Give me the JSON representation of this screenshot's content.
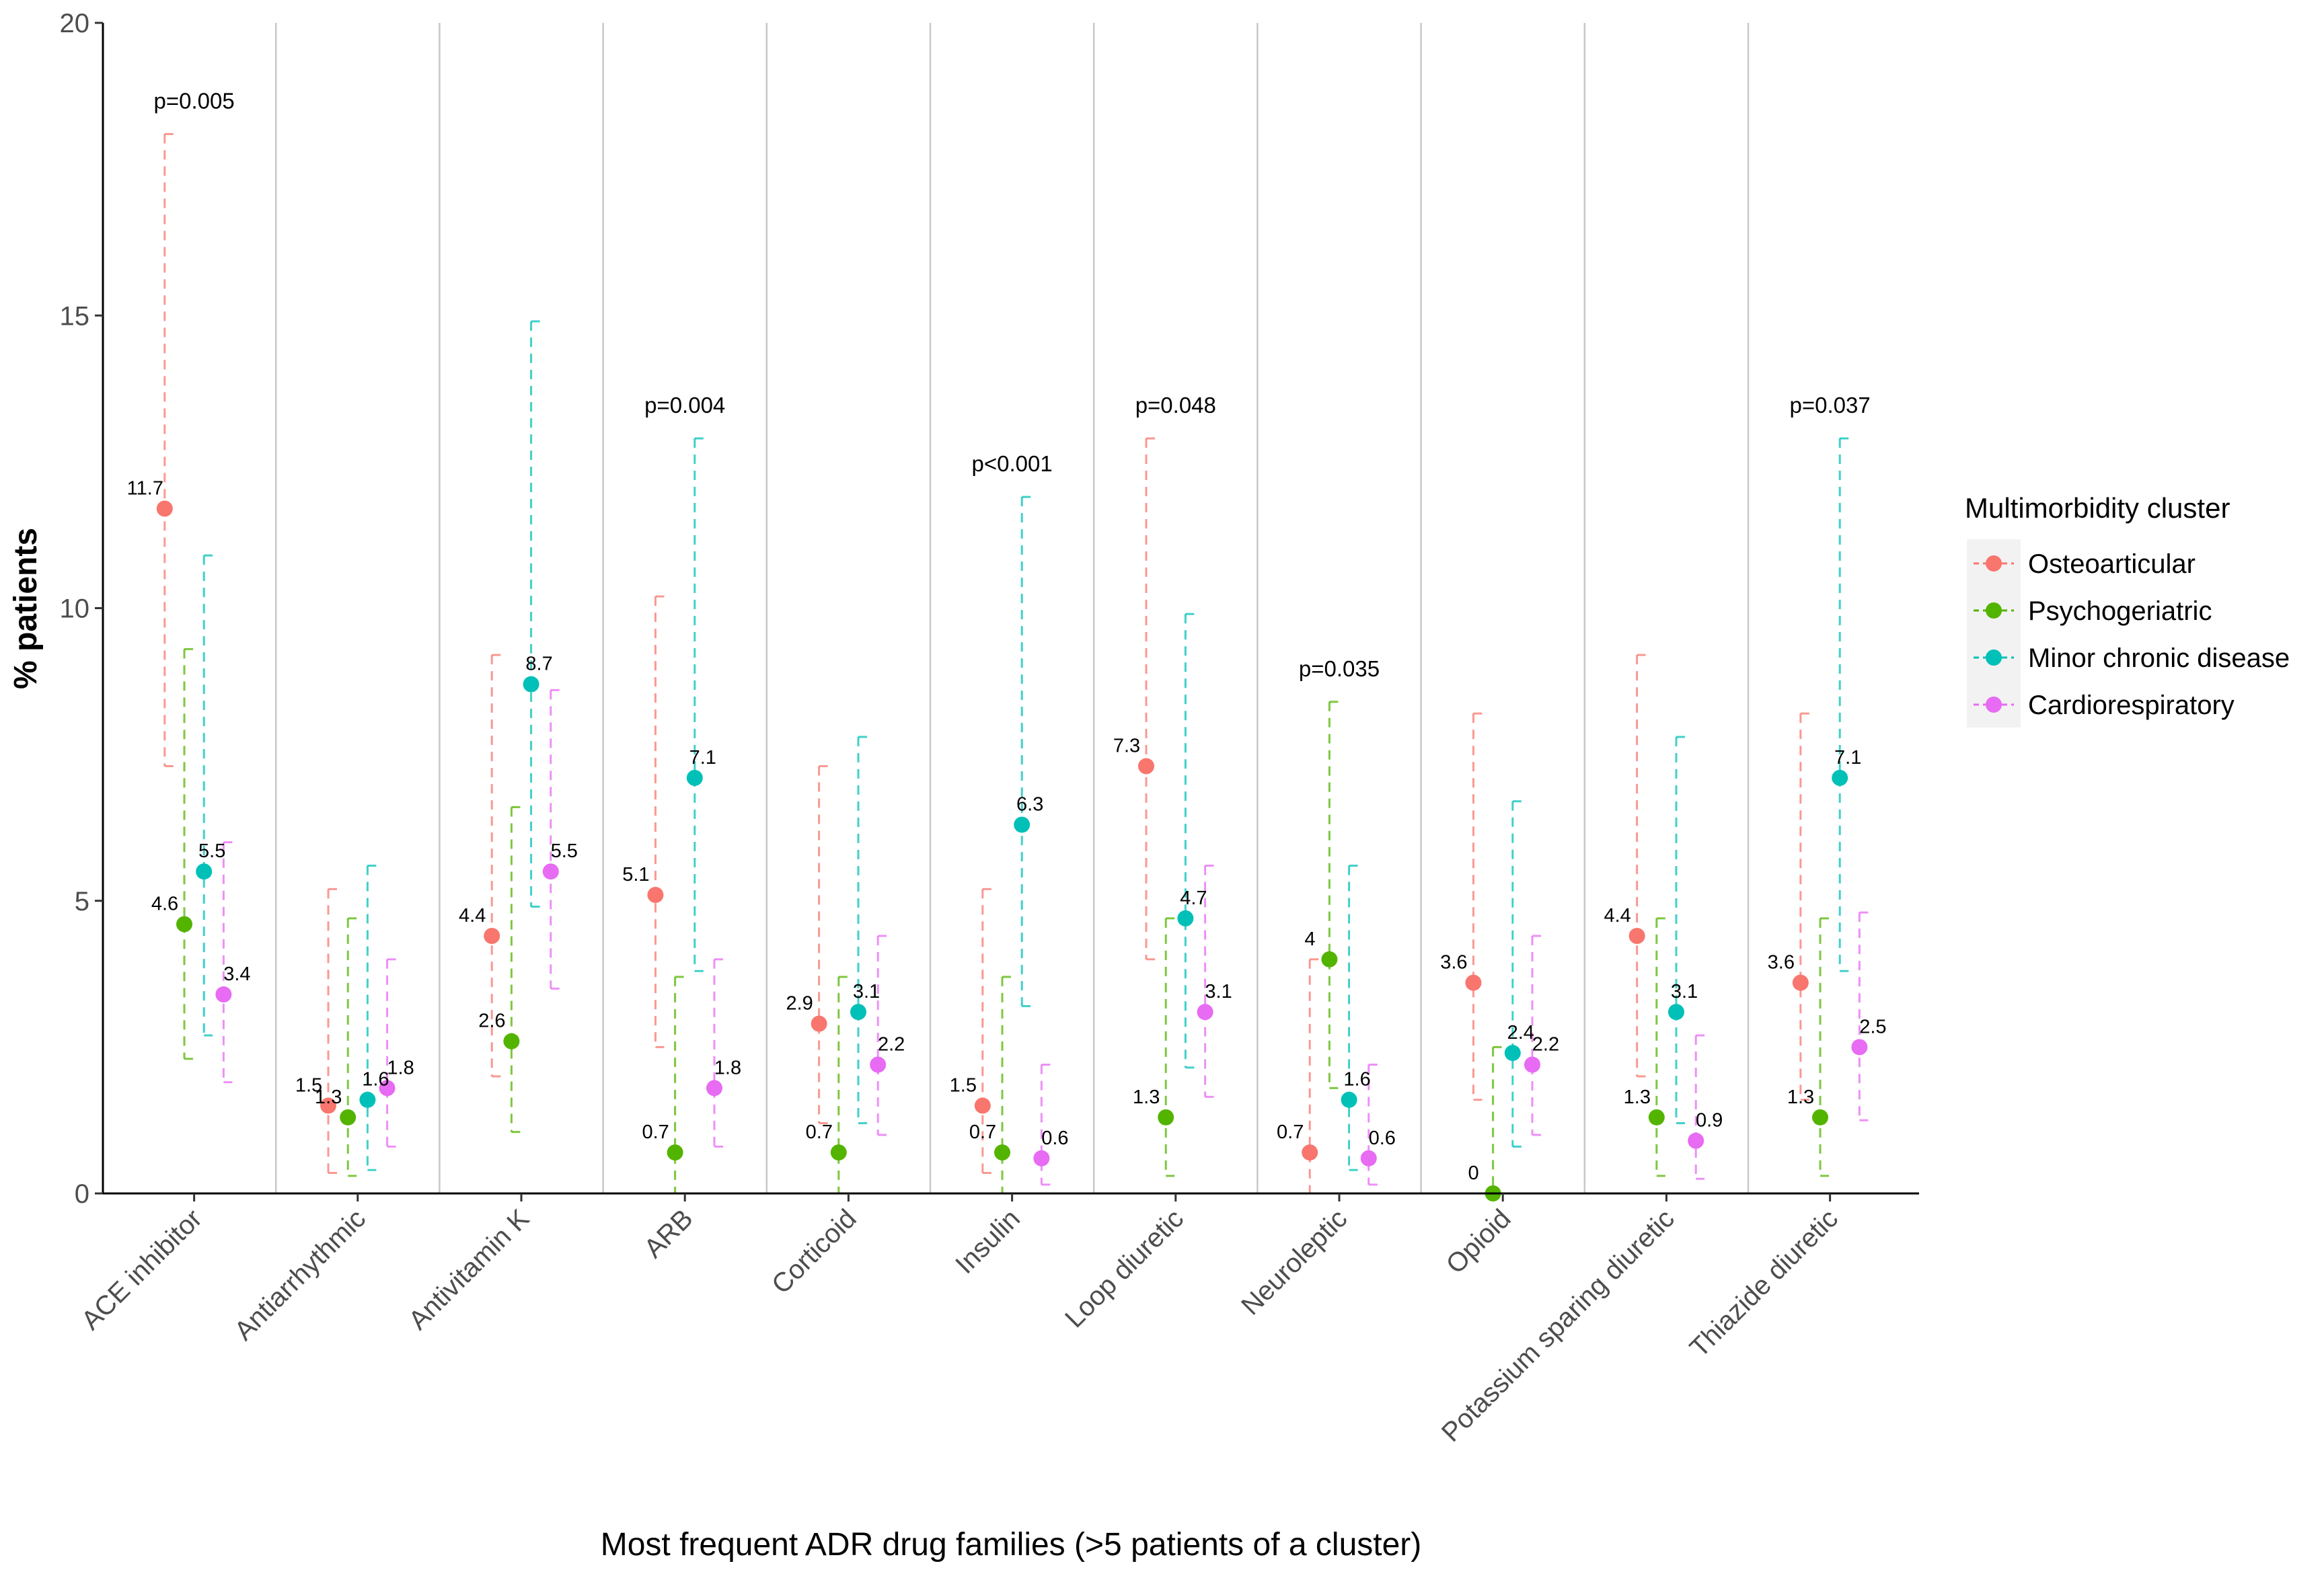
{
  "chart_data": {
    "type": "scatter",
    "title": "",
    "xlabel": "Most frequent ADR drug families (>5 patients of a cluster)",
    "ylabel": "% patients",
    "ylim": [
      0,
      20
    ],
    "yticks": [
      0,
      5,
      10,
      15,
      20
    ],
    "categories": [
      "ACE inhibitor",
      "Antiarrhythmic",
      "Antivitamin K",
      "ARB",
      "Corticoid",
      "Insulin",
      "Loop diuretic",
      "Neuroleptic",
      "Opioid",
      "Potassium sparing diuretic",
      "Thiazide diuretic"
    ],
    "p_values": [
      "p=0.005",
      "",
      "",
      "p=0.004",
      "",
      "p<0.001",
      "p=0.048",
      "p=0.035",
      "",
      "",
      "p=0.037"
    ],
    "legend_title": "Multimorbidity cluster",
    "legend_position": "right",
    "error_bars": "dashed confidence intervals",
    "series": [
      {
        "name": "Osteoarticular",
        "color": "#F8766D",
        "values": [
          11.7,
          1.5,
          4.4,
          5.1,
          2.9,
          1.5,
          7.3,
          0.7,
          3.6,
          4.4,
          3.6
        ],
        "labels": [
          "11.7",
          "1.5",
          "4.4",
          "5.1",
          "2.9",
          "1.5",
          "7.3",
          "0.7",
          "3.6",
          "4.4",
          "3.6"
        ],
        "lower": [
          7.3,
          0.35,
          2.0,
          2.5,
          1.2,
          0.35,
          4.0,
          0.0,
          1.6,
          2.0,
          1.6
        ],
        "upper": [
          18.1,
          5.2,
          9.2,
          10.2,
          7.3,
          5.2,
          12.9,
          4.0,
          8.2,
          9.2,
          8.2
        ]
      },
      {
        "name": "Psychogeriatric",
        "color": "#53B400",
        "values": [
          4.6,
          1.3,
          2.6,
          0.7,
          0.7,
          0.7,
          1.3,
          4.0,
          0.0,
          1.3,
          1.3
        ],
        "labels": [
          "4.6",
          "1.3",
          "2.6",
          "0.7",
          "0.7",
          "0.7",
          "1.3",
          "4",
          "0",
          "1.3",
          "1.3"
        ],
        "lower": [
          2.3,
          0.3,
          1.05,
          0.0,
          0.0,
          0.0,
          0.3,
          1.8,
          0.0,
          0.3,
          0.3
        ],
        "upper": [
          9.3,
          4.7,
          6.6,
          3.7,
          3.7,
          3.7,
          4.7,
          8.4,
          2.5,
          4.7,
          4.7
        ]
      },
      {
        "name": "Minor chronic disease",
        "color": "#00C0B8",
        "values": [
          5.5,
          1.6,
          8.7,
          7.1,
          3.1,
          6.3,
          4.7,
          1.6,
          2.4,
          3.1,
          7.1
        ],
        "labels": [
          "5.5",
          "1.6",
          "8.7",
          "7.1",
          "3.1",
          "6.3",
          "4.7",
          "1.6",
          "2.4",
          "3.1",
          "7.1"
        ],
        "lower": [
          2.7,
          0.4,
          4.9,
          3.8,
          1.2,
          3.2,
          2.15,
          0.4,
          0.8,
          1.2,
          3.8
        ],
        "upper": [
          10.9,
          5.6,
          14.9,
          12.9,
          7.8,
          11.9,
          9.9,
          5.6,
          6.7,
          7.8,
          12.9
        ]
      },
      {
        "name": "Cardiorespiratory",
        "color": "#E76BF3",
        "values": [
          3.4,
          1.8,
          5.5,
          1.8,
          2.2,
          0.6,
          3.1,
          0.6,
          2.2,
          0.9,
          2.5
        ],
        "labels": [
          "3.4",
          "1.8",
          "5.5",
          "1.8",
          "2.2",
          "0.6",
          "3.1",
          "0.6",
          "2.2",
          "0.9",
          "2.5"
        ],
        "lower": [
          1.9,
          0.8,
          3.5,
          0.8,
          1.0,
          0.15,
          1.65,
          0.15,
          1.0,
          0.25,
          1.25
        ],
        "upper": [
          6.0,
          4.0,
          8.6,
          4.0,
          4.4,
          2.2,
          5.6,
          2.2,
          4.4,
          2.7,
          4.8
        ]
      }
    ]
  }
}
